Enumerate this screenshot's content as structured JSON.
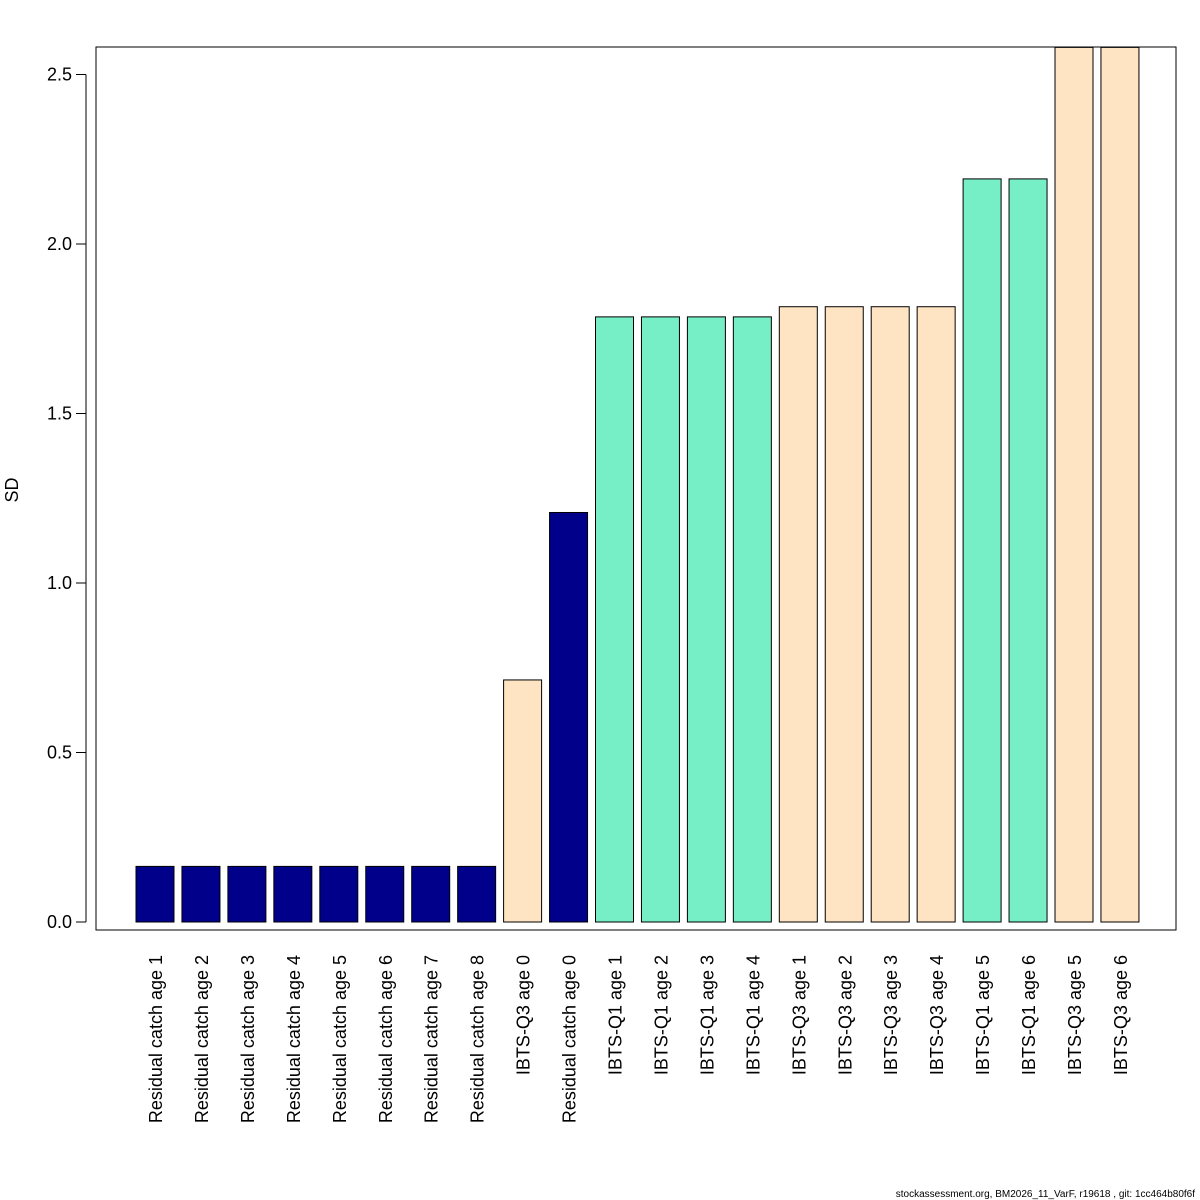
{
  "chart_data": {
    "type": "bar",
    "ylabel": "SD",
    "xlabel": "",
    "title": "",
    "ylim": [
      0,
      2.58
    ],
    "yticks": [
      0.0,
      0.5,
      1.0,
      1.5,
      2.0,
      2.5
    ],
    "ytick_labels": [
      "0.0",
      "0.5",
      "1.0",
      "1.5",
      "2.0",
      "2.5"
    ],
    "grid": false,
    "legend": "none",
    "categories": [
      "Residual catch age 1",
      "Residual catch age 2",
      "Residual catch age 3",
      "Residual catch age 4",
      "Residual catch age 5",
      "Residual catch age 6",
      "Residual catch age 7",
      "Residual catch age 8",
      "IBTS-Q3 age 0",
      "Residual catch age 0",
      "IBTS-Q1 age 1",
      "IBTS-Q1 age 2",
      "IBTS-Q1 age 3",
      "IBTS-Q1 age 4",
      "IBTS-Q3 age 1",
      "IBTS-Q3 age 2",
      "IBTS-Q3 age 3",
      "IBTS-Q3 age 4",
      "IBTS-Q1 age 5",
      "IBTS-Q1 age 6",
      "IBTS-Q3 age 5",
      "IBTS-Q3 age 6"
    ],
    "values": [
      0.164,
      0.164,
      0.164,
      0.164,
      0.164,
      0.164,
      0.164,
      0.164,
      0.714,
      1.208,
      1.785,
      1.785,
      1.785,
      1.785,
      1.815,
      1.815,
      1.815,
      1.815,
      2.192,
      2.192,
      2.58,
      2.58
    ],
    "colors": [
      "#00008b",
      "#00008b",
      "#00008b",
      "#00008b",
      "#00008b",
      "#00008b",
      "#00008b",
      "#00008b",
      "#ffe4c4",
      "#00008b",
      "#76eec6",
      "#76eec6",
      "#76eec6",
      "#76eec6",
      "#ffe4c4",
      "#ffe4c4",
      "#ffe4c4",
      "#ffe4c4",
      "#76eec6",
      "#76eec6",
      "#ffe4c4",
      "#ffe4c4"
    ]
  },
  "footer": {
    "note": "stockassessment.org, BM2026_11_VarF, r19618 , git: 1cc464b80f6f"
  }
}
